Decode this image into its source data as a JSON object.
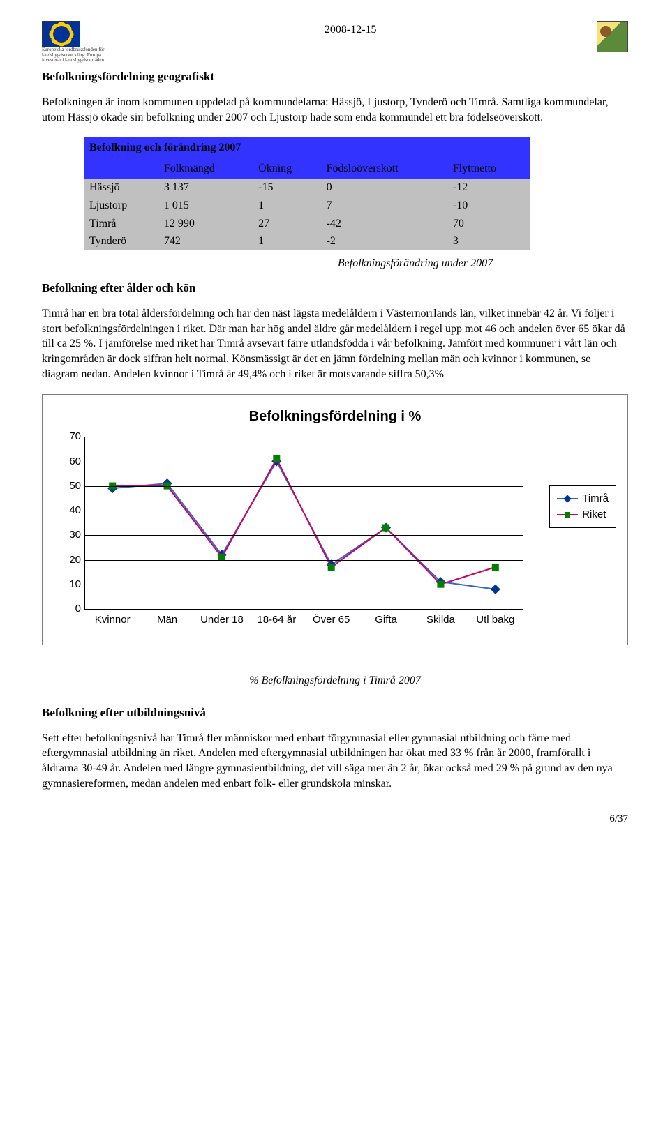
{
  "header": {
    "date": "2008-12-15",
    "eu_caption_l1": "Europeiska jordbruksfonden för",
    "eu_caption_l2": "landsbygdsutveckling: Europa",
    "eu_caption_l3": "investerar i landsbygdsområden"
  },
  "section1": {
    "title": "Befolkningsfördelning geografiskt",
    "para": "Befolkningen är inom kommunen uppdelad på kommundelarna: Hässjö, Ljustorp, Tynderö och Timrå. Samtliga kommundelar, utom Hässjö ökade sin befolkning under 2007 och Ljustorp hade som enda kommundel ett bra födelseöverskott."
  },
  "table1": {
    "title": "Befolkning  och förändring 2007",
    "columns": [
      "",
      "Folkmängd",
      "Ökning",
      "Födsloöverskott",
      "Flyttnetto"
    ],
    "rows": [
      [
        "Hässjö",
        "3 137",
        "-15",
        "0",
        "-12"
      ],
      [
        "Ljustorp",
        "1 015",
        "1",
        "7",
        "-10"
      ],
      [
        "Timrå",
        "12 990",
        "27",
        "-42",
        "70"
      ],
      [
        "Tynderö",
        "742",
        "1",
        "-2",
        "3"
      ]
    ],
    "caption": "Befolkningsförändring under 2007"
  },
  "section2": {
    "title": "Befolkning efter ålder och kön",
    "para": "Timrå har en bra total åldersfördelning och har den näst lägsta medelåldern i Västernorrlands län, vilket innebär 42 år. Vi följer i stort befolkningsfördelningen i riket. Där man har hög andel äldre går medelåldern i regel upp mot 46 och andelen över 65 ökar då till ca 25 %. I jämförelse med riket har Timrå avsevärt färre utlandsfödda i vår befolkning. Jämfört med kommuner i vårt län och kringområden är dock siffran helt normal. Könsmässigt är det en jämn fördelning mellan män och kvinnor i kommunen, se diagram nedan. Andelen kvinnor i Timrå är 49,4% och i riket är motsvarande siffra 50,3%"
  },
  "chart": {
    "title": "Befolkningsfördelning i %",
    "ylim": [
      0,
      70
    ],
    "ytick_step": 10,
    "grid_color": "#000000",
    "background_color": "#ffffff",
    "categories": [
      "Kvinnor",
      "Män",
      "Under 18",
      "18-64 år",
      "Över 65",
      "Gifta",
      "Skilda",
      "Utl bakg"
    ],
    "series": [
      {
        "name": "Timrå",
        "color": "#3366cc",
        "marker": "diamond",
        "marker_fill": "#003399",
        "values": [
          49,
          51,
          22,
          60,
          18,
          33,
          11,
          8
        ]
      },
      {
        "name": "Riket",
        "color": "#cc0066",
        "marker": "square",
        "marker_fill": "#008000",
        "values": [
          50,
          50,
          21,
          61,
          17,
          33,
          10,
          17
        ]
      }
    ],
    "caption": "% Befolkningsfördelning i Timrå 2007"
  },
  "section3": {
    "title": "Befolkning efter utbildningsnivå",
    "para": "Sett efter befolkningsnivå har Timrå fler människor med enbart förgymnasial eller gymnasial utbildning och färre med eftergymnasial utbildning än riket. Andelen med eftergymnasial utbildningen har ökat med 33 % från år 2000, framförallt i åldrarna 30-49 år. Andelen med längre gymnasieutbildning, det vill säga mer än 2 år, ökar också med 29 % på grund av den nya gymnasiereformen, medan andelen med enbart folk- eller grundskola minskar."
  },
  "page": {
    "num": "6/37"
  }
}
